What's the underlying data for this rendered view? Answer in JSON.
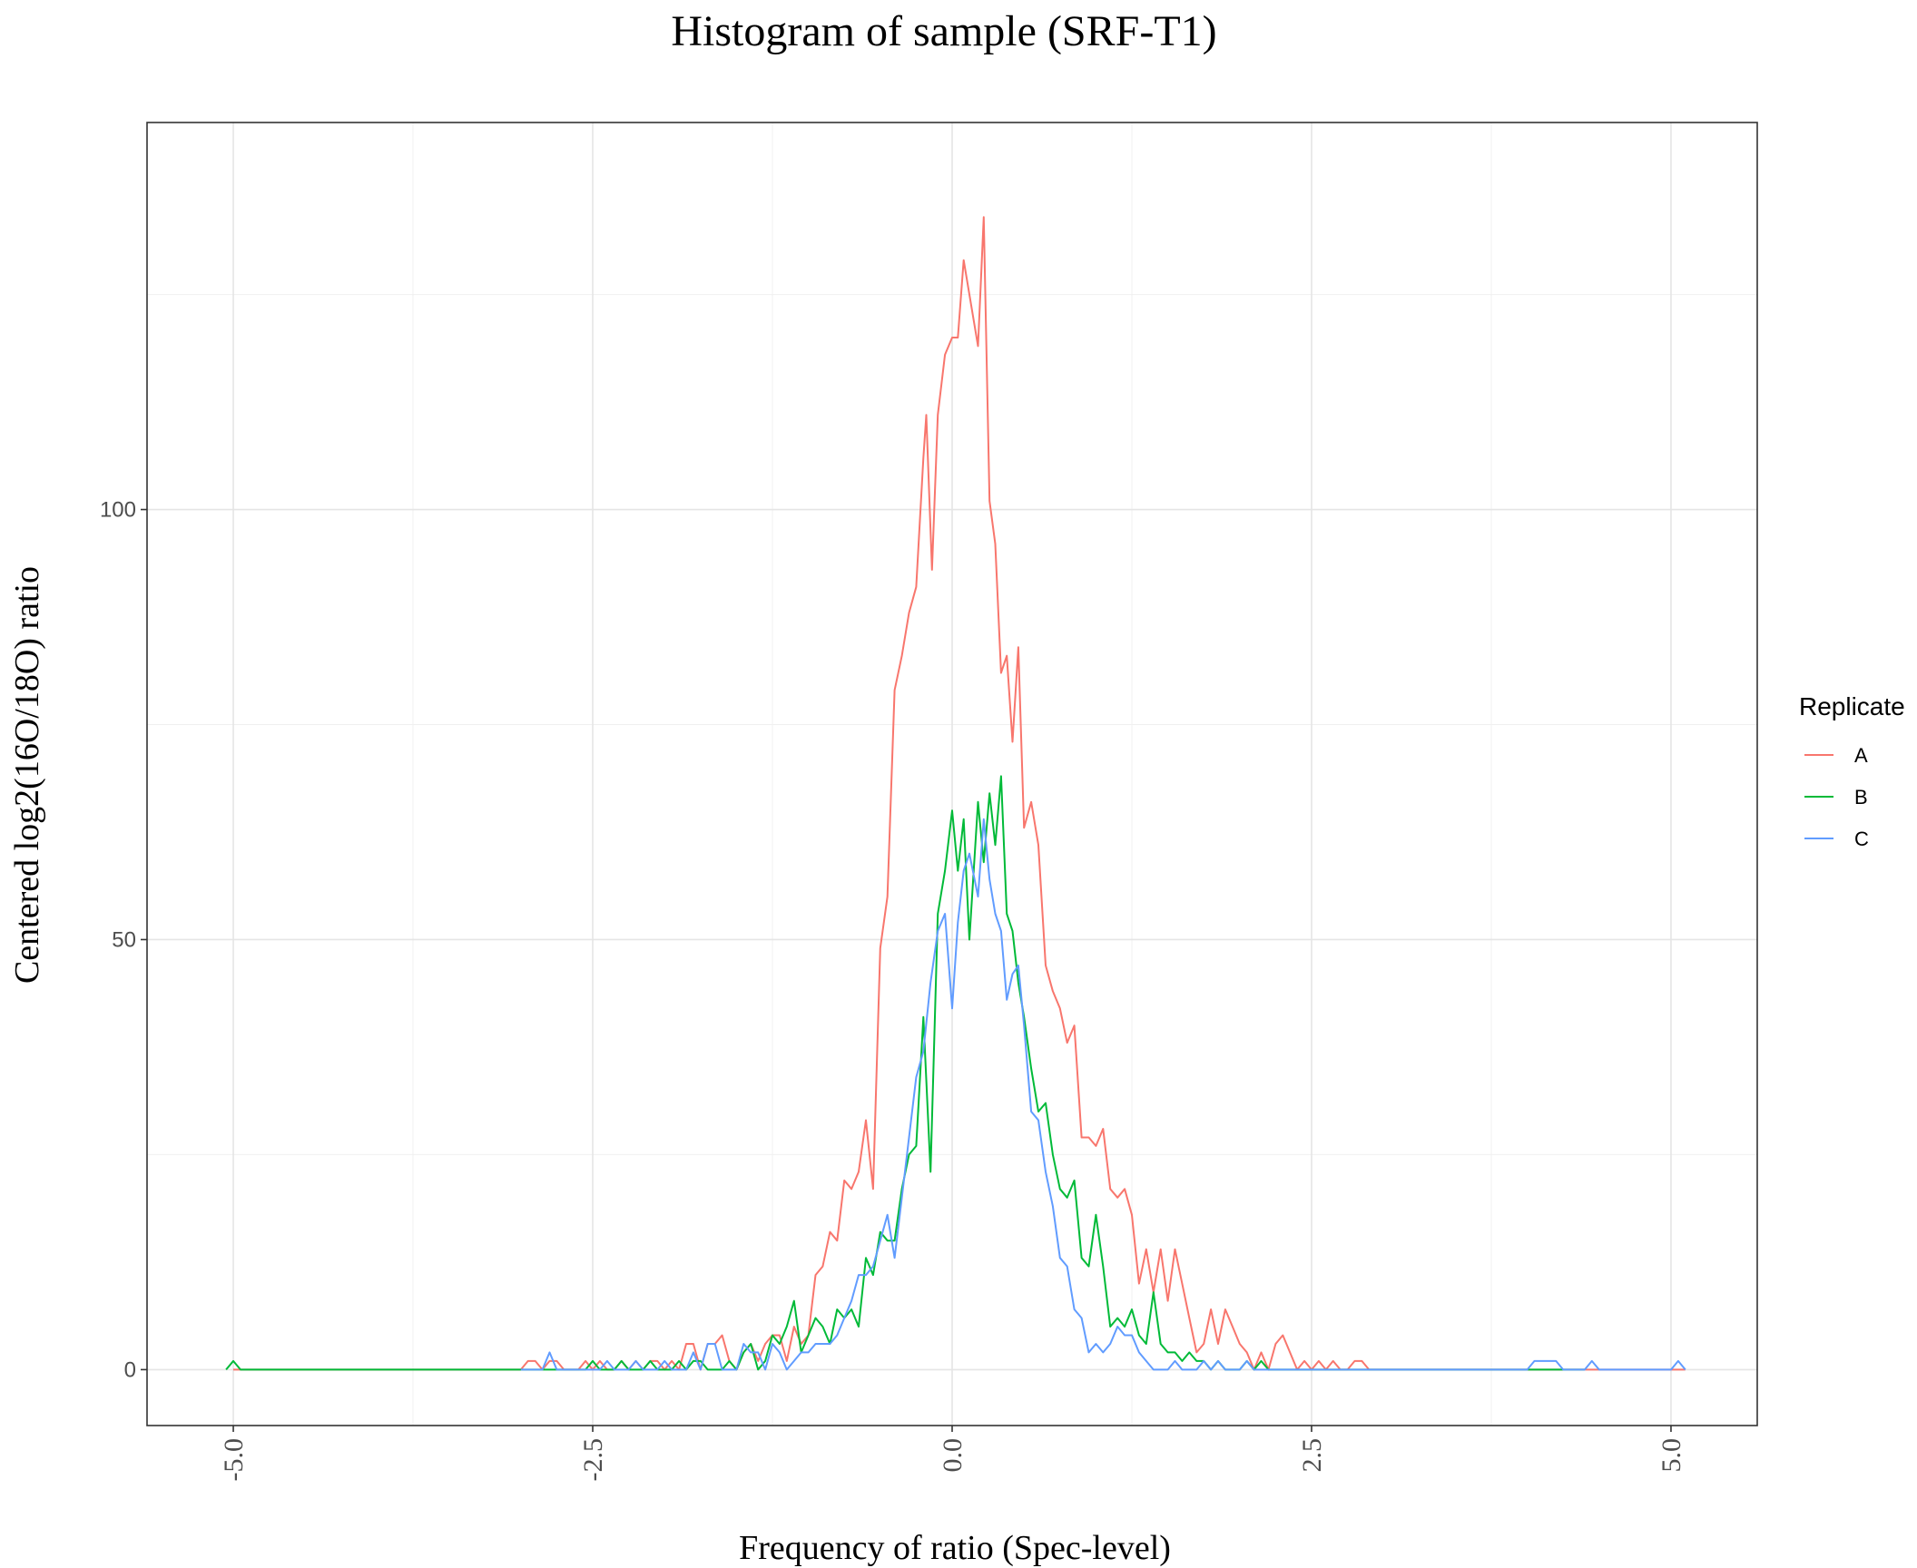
{
  "chart_data": {
    "type": "line",
    "title": "Histogram of sample (SRF-T1)",
    "xlabel": "Frequency of ratio (Spec-level)",
    "ylabel": "Centered log2(16O/18O) ratio",
    "xlim": [
      -5.6,
      5.6
    ],
    "ylim": [
      -6.5,
      145
    ],
    "x_ticks": [
      -5.0,
      -2.5,
      0.0,
      2.5,
      5.0
    ],
    "x_tick_labels": [
      "-5.0",
      "-2.5",
      "0.0",
      "2.5",
      "5.0"
    ],
    "y_ticks": [
      0,
      50,
      100
    ],
    "y_tick_labels": [
      "0",
      "50",
      "100"
    ],
    "y_minor_gridlines": [
      25,
      75,
      125
    ],
    "x_minor_gridlines": [
      -3.75,
      -1.25,
      1.25,
      3.75
    ],
    "grid": true,
    "legend": {
      "title": "Replicate",
      "position": "right"
    },
    "series": [
      {
        "name": "A",
        "color": "#F8766D",
        "points": [
          [
            -5.0,
            0
          ],
          [
            -3.0,
            0
          ],
          [
            -2.95,
            1
          ],
          [
            -2.9,
            1
          ],
          [
            -2.85,
            0
          ],
          [
            -2.8,
            1
          ],
          [
            -2.75,
            1
          ],
          [
            -2.7,
            0
          ],
          [
            -2.6,
            0
          ],
          [
            -2.55,
            1
          ],
          [
            -2.5,
            0
          ],
          [
            -2.45,
            1
          ],
          [
            -2.4,
            0
          ],
          [
            -2.35,
            0
          ],
          [
            -2.3,
            1
          ],
          [
            -2.25,
            0
          ],
          [
            -2.2,
            1
          ],
          [
            -2.15,
            0
          ],
          [
            -2.1,
            1
          ],
          [
            -2.05,
            1
          ],
          [
            -2.0,
            0
          ],
          [
            -1.95,
            1
          ],
          [
            -1.9,
            0
          ],
          [
            -1.85,
            3
          ],
          [
            -1.8,
            3
          ],
          [
            -1.75,
            0
          ],
          [
            -1.7,
            3
          ],
          [
            -1.65,
            3
          ],
          [
            -1.6,
            4
          ],
          [
            -1.55,
            1
          ],
          [
            -1.5,
            0
          ],
          [
            -1.45,
            2
          ],
          [
            -1.4,
            3
          ],
          [
            -1.35,
            1
          ],
          [
            -1.3,
            3
          ],
          [
            -1.25,
            4
          ],
          [
            -1.2,
            4
          ],
          [
            -1.15,
            1
          ],
          [
            -1.1,
            5
          ],
          [
            -1.05,
            3
          ],
          [
            -1.0,
            4
          ],
          [
            -0.95,
            11
          ],
          [
            -0.9,
            12
          ],
          [
            -0.85,
            16
          ],
          [
            -0.8,
            15
          ],
          [
            -0.75,
            22
          ],
          [
            -0.7,
            21
          ],
          [
            -0.65,
            23
          ],
          [
            -0.6,
            29
          ],
          [
            -0.55,
            21
          ],
          [
            -0.5,
            49
          ],
          [
            -0.45,
            55
          ],
          [
            -0.4,
            79
          ],
          [
            -0.35,
            83
          ],
          [
            -0.3,
            88
          ],
          [
            -0.25,
            91
          ],
          [
            -0.2,
            106
          ],
          [
            -0.18,
            111
          ],
          [
            -0.14,
            93
          ],
          [
            -0.1,
            111
          ],
          [
            -0.05,
            118
          ],
          [
            0.0,
            120
          ],
          [
            0.04,
            120
          ],
          [
            0.08,
            129
          ],
          [
            0.12,
            125
          ],
          [
            0.18,
            119
          ],
          [
            0.22,
            134
          ],
          [
            0.26,
            101
          ],
          [
            0.3,
            96
          ],
          [
            0.34,
            81
          ],
          [
            0.38,
            83
          ],
          [
            0.42,
            73
          ],
          [
            0.46,
            84
          ],
          [
            0.5,
            63
          ],
          [
            0.55,
            66
          ],
          [
            0.6,
            61
          ],
          [
            0.65,
            47
          ],
          [
            0.7,
            44
          ],
          [
            0.75,
            42
          ],
          [
            0.8,
            38
          ],
          [
            0.85,
            40
          ],
          [
            0.9,
            27
          ],
          [
            0.95,
            27
          ],
          [
            1.0,
            26
          ],
          [
            1.05,
            28
          ],
          [
            1.1,
            21
          ],
          [
            1.15,
            20
          ],
          [
            1.2,
            21
          ],
          [
            1.25,
            18
          ],
          [
            1.3,
            10
          ],
          [
            1.35,
            14
          ],
          [
            1.4,
            9
          ],
          [
            1.45,
            14
          ],
          [
            1.5,
            8
          ],
          [
            1.55,
            14
          ],
          [
            1.6,
            10
          ],
          [
            1.65,
            6
          ],
          [
            1.7,
            2
          ],
          [
            1.75,
            3
          ],
          [
            1.8,
            7
          ],
          [
            1.85,
            3
          ],
          [
            1.9,
            7
          ],
          [
            1.95,
            5
          ],
          [
            2.0,
            3
          ],
          [
            2.05,
            2
          ],
          [
            2.1,
            0
          ],
          [
            2.15,
            2
          ],
          [
            2.2,
            0
          ],
          [
            2.25,
            3
          ],
          [
            2.3,
            4
          ],
          [
            2.35,
            2
          ],
          [
            2.4,
            0
          ],
          [
            2.45,
            1
          ],
          [
            2.5,
            0
          ],
          [
            2.55,
            1
          ],
          [
            2.6,
            0
          ],
          [
            2.65,
            1
          ],
          [
            2.7,
            0
          ],
          [
            2.75,
            0
          ],
          [
            2.8,
            1
          ],
          [
            2.85,
            1
          ],
          [
            2.9,
            0
          ],
          [
            5.1,
            0
          ]
        ]
      },
      {
        "name": "B",
        "color": "#00BA38",
        "points": [
          [
            -5.05,
            0
          ],
          [
            -5.0,
            1
          ],
          [
            -4.95,
            0
          ],
          [
            -2.6,
            0
          ],
          [
            -2.55,
            0
          ],
          [
            -2.5,
            1
          ],
          [
            -2.45,
            0
          ],
          [
            -2.35,
            0
          ],
          [
            -2.3,
            1
          ],
          [
            -2.25,
            0
          ],
          [
            -2.15,
            0
          ],
          [
            -2.1,
            1
          ],
          [
            -2.05,
            0
          ],
          [
            -1.95,
            0
          ],
          [
            -1.9,
            1
          ],
          [
            -1.85,
            0
          ],
          [
            -1.8,
            1
          ],
          [
            -1.75,
            1
          ],
          [
            -1.7,
            0
          ],
          [
            -1.6,
            0
          ],
          [
            -1.55,
            1
          ],
          [
            -1.5,
            0
          ],
          [
            -1.45,
            2
          ],
          [
            -1.4,
            3
          ],
          [
            -1.35,
            0
          ],
          [
            -1.3,
            1
          ],
          [
            -1.25,
            4
          ],
          [
            -1.2,
            3
          ],
          [
            -1.15,
            5
          ],
          [
            -1.1,
            8
          ],
          [
            -1.05,
            2
          ],
          [
            -1.0,
            4
          ],
          [
            -0.95,
            6
          ],
          [
            -0.9,
            5
          ],
          [
            -0.85,
            3
          ],
          [
            -0.8,
            7
          ],
          [
            -0.75,
            6
          ],
          [
            -0.7,
            7
          ],
          [
            -0.65,
            5
          ],
          [
            -0.6,
            13
          ],
          [
            -0.55,
            11
          ],
          [
            -0.5,
            16
          ],
          [
            -0.45,
            15
          ],
          [
            -0.4,
            15
          ],
          [
            -0.35,
            21
          ],
          [
            -0.3,
            25
          ],
          [
            -0.25,
            26
          ],
          [
            -0.2,
            41
          ],
          [
            -0.15,
            23
          ],
          [
            -0.1,
            53
          ],
          [
            -0.05,
            58
          ],
          [
            0.0,
            65
          ],
          [
            0.04,
            58
          ],
          [
            0.08,
            64
          ],
          [
            0.12,
            50
          ],
          [
            0.18,
            66
          ],
          [
            0.22,
            59
          ],
          [
            0.26,
            67
          ],
          [
            0.3,
            61
          ],
          [
            0.34,
            69
          ],
          [
            0.38,
            53
          ],
          [
            0.42,
            51
          ],
          [
            0.46,
            45
          ],
          [
            0.5,
            41
          ],
          [
            0.55,
            35
          ],
          [
            0.6,
            30
          ],
          [
            0.65,
            31
          ],
          [
            0.7,
            25
          ],
          [
            0.75,
            21
          ],
          [
            0.8,
            20
          ],
          [
            0.85,
            22
          ],
          [
            0.9,
            13
          ],
          [
            0.95,
            12
          ],
          [
            1.0,
            18
          ],
          [
            1.05,
            12
          ],
          [
            1.1,
            5
          ],
          [
            1.15,
            6
          ],
          [
            1.2,
            5
          ],
          [
            1.25,
            7
          ],
          [
            1.3,
            4
          ],
          [
            1.35,
            3
          ],
          [
            1.4,
            9
          ],
          [
            1.45,
            3
          ],
          [
            1.5,
            2
          ],
          [
            1.55,
            2
          ],
          [
            1.6,
            1
          ],
          [
            1.65,
            2
          ],
          [
            1.7,
            1
          ],
          [
            1.75,
            1
          ],
          [
            1.8,
            0
          ],
          [
            1.85,
            1
          ],
          [
            1.9,
            0
          ],
          [
            2.0,
            0
          ],
          [
            2.05,
            1
          ],
          [
            2.1,
            0
          ],
          [
            2.15,
            1
          ],
          [
            2.2,
            0
          ],
          [
            4.05,
            0
          ],
          [
            4.4,
            0
          ]
        ]
      },
      {
        "name": "C",
        "color": "#619CFF",
        "points": [
          [
            -3.0,
            0
          ],
          [
            -2.85,
            0
          ],
          [
            -2.8,
            2
          ],
          [
            -2.75,
            0
          ],
          [
            -2.45,
            0
          ],
          [
            -2.4,
            1
          ],
          [
            -2.35,
            0
          ],
          [
            -2.25,
            0
          ],
          [
            -2.2,
            1
          ],
          [
            -2.15,
            0
          ],
          [
            -2.05,
            0
          ],
          [
            -2.0,
            1
          ],
          [
            -1.95,
            0
          ],
          [
            -1.85,
            0
          ],
          [
            -1.8,
            2
          ],
          [
            -1.75,
            0
          ],
          [
            -1.7,
            3
          ],
          [
            -1.65,
            3
          ],
          [
            -1.6,
            0
          ],
          [
            -1.5,
            0
          ],
          [
            -1.45,
            3
          ],
          [
            -1.4,
            2
          ],
          [
            -1.35,
            2
          ],
          [
            -1.3,
            0
          ],
          [
            -1.25,
            3
          ],
          [
            -1.2,
            2
          ],
          [
            -1.15,
            0
          ],
          [
            -1.1,
            1
          ],
          [
            -1.05,
            2
          ],
          [
            -1.0,
            2
          ],
          [
            -0.95,
            3
          ],
          [
            -0.9,
            3
          ],
          [
            -0.85,
            3
          ],
          [
            -0.8,
            4
          ],
          [
            -0.75,
            6
          ],
          [
            -0.7,
            8
          ],
          [
            -0.65,
            11
          ],
          [
            -0.6,
            11
          ],
          [
            -0.55,
            12
          ],
          [
            -0.5,
            15
          ],
          [
            -0.45,
            18
          ],
          [
            -0.4,
            13
          ],
          [
            -0.35,
            20
          ],
          [
            -0.3,
            27
          ],
          [
            -0.25,
            34
          ],
          [
            -0.2,
            37
          ],
          [
            -0.15,
            45
          ],
          [
            -0.1,
            51
          ],
          [
            -0.05,
            53
          ],
          [
            0.0,
            42
          ],
          [
            0.04,
            52
          ],
          [
            0.08,
            58
          ],
          [
            0.12,
            60
          ],
          [
            0.18,
            55
          ],
          [
            0.22,
            64
          ],
          [
            0.26,
            57
          ],
          [
            0.3,
            53
          ],
          [
            0.34,
            51
          ],
          [
            0.38,
            43
          ],
          [
            0.42,
            46
          ],
          [
            0.46,
            47
          ],
          [
            0.5,
            40
          ],
          [
            0.55,
            30
          ],
          [
            0.6,
            29
          ],
          [
            0.65,
            23
          ],
          [
            0.7,
            19
          ],
          [
            0.75,
            13
          ],
          [
            0.8,
            12
          ],
          [
            0.85,
            7
          ],
          [
            0.9,
            6
          ],
          [
            0.95,
            2
          ],
          [
            1.0,
            3
          ],
          [
            1.05,
            2
          ],
          [
            1.1,
            3
          ],
          [
            1.15,
            5
          ],
          [
            1.2,
            4
          ],
          [
            1.25,
            4
          ],
          [
            1.3,
            2
          ],
          [
            1.35,
            1
          ],
          [
            1.4,
            0
          ],
          [
            1.5,
            0
          ],
          [
            1.55,
            1
          ],
          [
            1.6,
            0
          ],
          [
            1.7,
            0
          ],
          [
            1.75,
            1
          ],
          [
            1.8,
            0
          ],
          [
            1.85,
            1
          ],
          [
            1.9,
            0
          ],
          [
            2.0,
            0
          ],
          [
            2.05,
            1
          ],
          [
            2.1,
            0
          ],
          [
            4.0,
            0
          ],
          [
            4.05,
            1
          ],
          [
            4.2,
            1
          ],
          [
            4.25,
            0
          ],
          [
            4.4,
            0
          ],
          [
            4.45,
            1
          ],
          [
            4.5,
            0
          ],
          [
            5.0,
            0
          ],
          [
            5.05,
            1
          ],
          [
            5.1,
            0
          ]
        ]
      }
    ]
  }
}
